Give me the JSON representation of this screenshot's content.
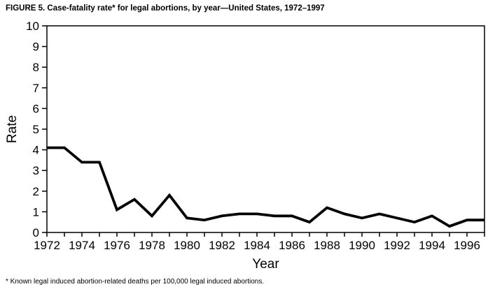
{
  "figure": {
    "title": "FIGURE 5. Case-fatality rate* for legal abortions, by year—United States, 1972–1997",
    "footnote": "* Known legal induced abortion-related deaths per 100,000 legal induced abortions."
  },
  "chart_data": {
    "type": "line",
    "title": "FIGURE 5. Case-fatality rate* for legal abortions, by year—United States, 1972–1997",
    "xlabel": "Year",
    "ylabel": "Rate",
    "x": [
      1972,
      1973,
      1974,
      1975,
      1976,
      1977,
      1978,
      1979,
      1980,
      1981,
      1982,
      1983,
      1984,
      1985,
      1986,
      1987,
      1988,
      1989,
      1990,
      1991,
      1992,
      1993,
      1994,
      1995,
      1996,
      1997
    ],
    "values": [
      4.1,
      4.1,
      3.4,
      3.4,
      1.1,
      1.6,
      0.8,
      1.8,
      0.7,
      0.6,
      0.8,
      0.9,
      0.9,
      0.8,
      0.8,
      0.5,
      1.2,
      0.9,
      0.7,
      0.9,
      0.7,
      0.5,
      0.8,
      0.3,
      0.6,
      0.6
    ],
    "series_name": "Case-fatality rate per 100,000 legal induced abortions",
    "xlim": [
      1972,
      1997
    ],
    "ylim": [
      0,
      10
    ],
    "y_ticks": [
      0,
      1,
      2,
      3,
      4,
      5,
      6,
      7,
      8,
      9,
      10
    ],
    "x_tick_labels": [
      "1972",
      "1974",
      "1976",
      "1978",
      "1980",
      "1982",
      "1984",
      "1986",
      "1988",
      "1990",
      "1992",
      "1994",
      "1996"
    ],
    "x_ticks_every_year": true,
    "grid": false,
    "legend_position": "none",
    "line_color": "#000000",
    "frame_color": "#000000",
    "background_color": "#ffffff"
  }
}
